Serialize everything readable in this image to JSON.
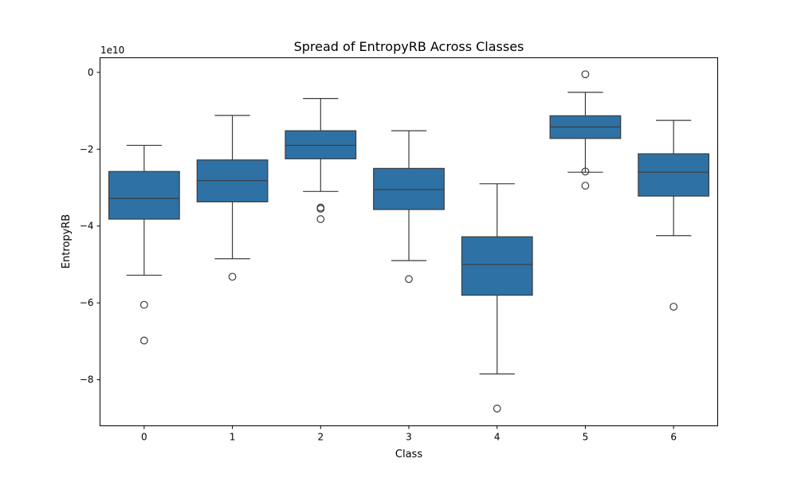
{
  "chart_data": {
    "type": "box",
    "title": "Spread of EntropyRB Across Classes",
    "xlabel": "Class",
    "ylabel": "EntropyRB",
    "y_offset_label": "1e10",
    "categories": [
      "0",
      "1",
      "2",
      "3",
      "4",
      "5",
      "6"
    ],
    "y_ticks": [
      0,
      -2,
      -4,
      -6,
      -8
    ],
    "y_tick_labels": [
      "0",
      "−2",
      "−4",
      "−6",
      "−8"
    ],
    "ylim": [
      -9.2,
      0.38
    ],
    "grid": false,
    "box_color": "#2e72a5",
    "edge_color": "#3b3b3b",
    "boxes": [
      {
        "category": "0",
        "whisker_low": -5.28,
        "q1": -3.82,
        "median": -3.28,
        "q3": -2.58,
        "whisker_high": -1.9,
        "outliers": [
          -6.05,
          -6.98
        ]
      },
      {
        "category": "1",
        "whisker_low": -4.85,
        "q1": -3.37,
        "median": -2.82,
        "q3": -2.28,
        "whisker_high": -1.12,
        "outliers": [
          -5.32
        ]
      },
      {
        "category": "2",
        "whisker_low": -3.1,
        "q1": -2.25,
        "median": -1.9,
        "q3": -1.52,
        "whisker_high": -0.68,
        "outliers": [
          -3.52,
          -3.55,
          -3.82
        ]
      },
      {
        "category": "3",
        "whisker_low": -4.9,
        "q1": -3.57,
        "median": -3.05,
        "q3": -2.5,
        "whisker_high": -1.52,
        "outliers": [
          -5.38
        ]
      },
      {
        "category": "4",
        "whisker_low": -7.85,
        "q1": -5.8,
        "median": -5.0,
        "q3": -4.28,
        "whisker_high": -2.9,
        "outliers": [
          -8.75
        ]
      },
      {
        "category": "5",
        "whisker_low": -2.6,
        "q1": -1.72,
        "median": -1.42,
        "q3": -1.13,
        "whisker_high": -0.52,
        "outliers": [
          -0.05,
          -2.58,
          -2.95
        ]
      },
      {
        "category": "6",
        "whisker_low": -4.25,
        "q1": -3.22,
        "median": -2.6,
        "q3": -2.12,
        "whisker_high": -1.25,
        "outliers": [
          -6.1
        ]
      }
    ]
  }
}
